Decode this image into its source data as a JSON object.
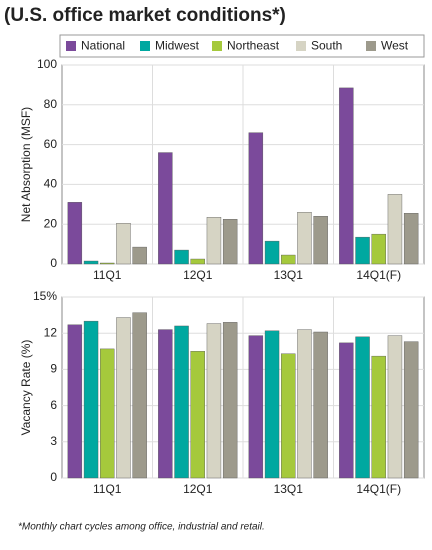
{
  "title": "(U.S. office market conditions*)",
  "footnote": "*Monthly chart cycles among office, industrial and retail.",
  "chart_data": [
    {
      "type": "bar",
      "y_label": "Net Absorption (MSF)",
      "categories": [
        "11Q1",
        "12Q1",
        "13Q1",
        "14Q1(F)"
      ],
      "series": [
        {
          "name": "National",
          "color": "#7b4a9b",
          "values": [
            31,
            56,
            66,
            88.5
          ]
        },
        {
          "name": "Midwest",
          "color": "#00a8a0",
          "values": [
            1.5,
            7,
            11.5,
            13.5
          ]
        },
        {
          "name": "Northeast",
          "color": "#a5c93c",
          "values": [
            0.5,
            2.5,
            4.5,
            15
          ]
        },
        {
          "name": "South",
          "color": "#d6d4c4",
          "values": [
            20.5,
            23.5,
            26,
            35
          ]
        },
        {
          "name": "West",
          "color": "#9d9a8c",
          "values": [
            8.5,
            22.5,
            24,
            25.5
          ]
        }
      ],
      "ylim": [
        0,
        100
      ],
      "yticks": [
        0,
        20,
        40,
        60,
        80,
        100
      ],
      "grid": true
    },
    {
      "type": "bar",
      "y_label": "Vacancy Rate (%)",
      "categories": [
        "11Q1",
        "12Q1",
        "13Q1",
        "14Q1(F)"
      ],
      "series": [
        {
          "name": "National",
          "color": "#7b4a9b",
          "values": [
            12.7,
            12.3,
            11.8,
            11.2
          ]
        },
        {
          "name": "Midwest",
          "color": "#00a8a0",
          "values": [
            13.0,
            12.6,
            12.2,
            11.7
          ]
        },
        {
          "name": "Northeast",
          "color": "#a5c93c",
          "values": [
            10.7,
            10.5,
            10.3,
            10.1
          ]
        },
        {
          "name": "South",
          "color": "#d6d4c4",
          "values": [
            13.3,
            12.8,
            12.3,
            11.8
          ]
        },
        {
          "name": "West",
          "color": "#9d9a8c",
          "values": [
            13.7,
            12.9,
            12.1,
            11.3
          ]
        }
      ],
      "ylim": [
        0,
        15
      ],
      "yticks": [
        0,
        3,
        6,
        9,
        12,
        {
          "value": 15,
          "label": "15%"
        }
      ],
      "grid": true
    }
  ]
}
